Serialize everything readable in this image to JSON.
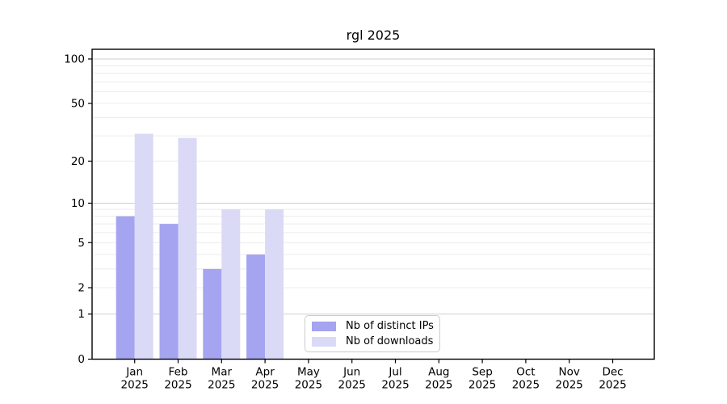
{
  "figure": {
    "title": "rgl 2025"
  },
  "chart_data": {
    "type": "bar",
    "title": "rgl 2025",
    "categories": [
      "Jan",
      "Feb",
      "Mar",
      "Apr",
      "May",
      "Jun",
      "Jul",
      "Aug",
      "Sep",
      "Oct",
      "Nov",
      "Dec"
    ],
    "year_label": "2025",
    "series": [
      {
        "name": "Nb of distinct IPs",
        "color": "#a4a4f0",
        "values": [
          8,
          7,
          3,
          4,
          null,
          null,
          null,
          null,
          null,
          null,
          null,
          null
        ]
      },
      {
        "name": "Nb of downloads",
        "color": "#dadaf7",
        "values": [
          31,
          29,
          9,
          9,
          null,
          null,
          null,
          null,
          null,
          null,
          null,
          null
        ]
      }
    ],
    "xlabel": "",
    "ylabel": "",
    "yscale": "log1p",
    "yticks": [
      0,
      1,
      2,
      5,
      10,
      20,
      50,
      100
    ],
    "ylim": [
      0,
      116
    ],
    "grid": true,
    "grid_major_at": [
      1,
      10,
      100
    ],
    "grid_minor_at": [
      2,
      3,
      4,
      5,
      6,
      7,
      8,
      9,
      20,
      30,
      40,
      50,
      60,
      70,
      80,
      90
    ],
    "legend_position": "bottom-center",
    "colors": {
      "axis": "#000000",
      "tick_text": "#000000",
      "grid_major": "#cfcfcf",
      "grid_minor": "#ececec",
      "background": "#ffffff"
    }
  }
}
